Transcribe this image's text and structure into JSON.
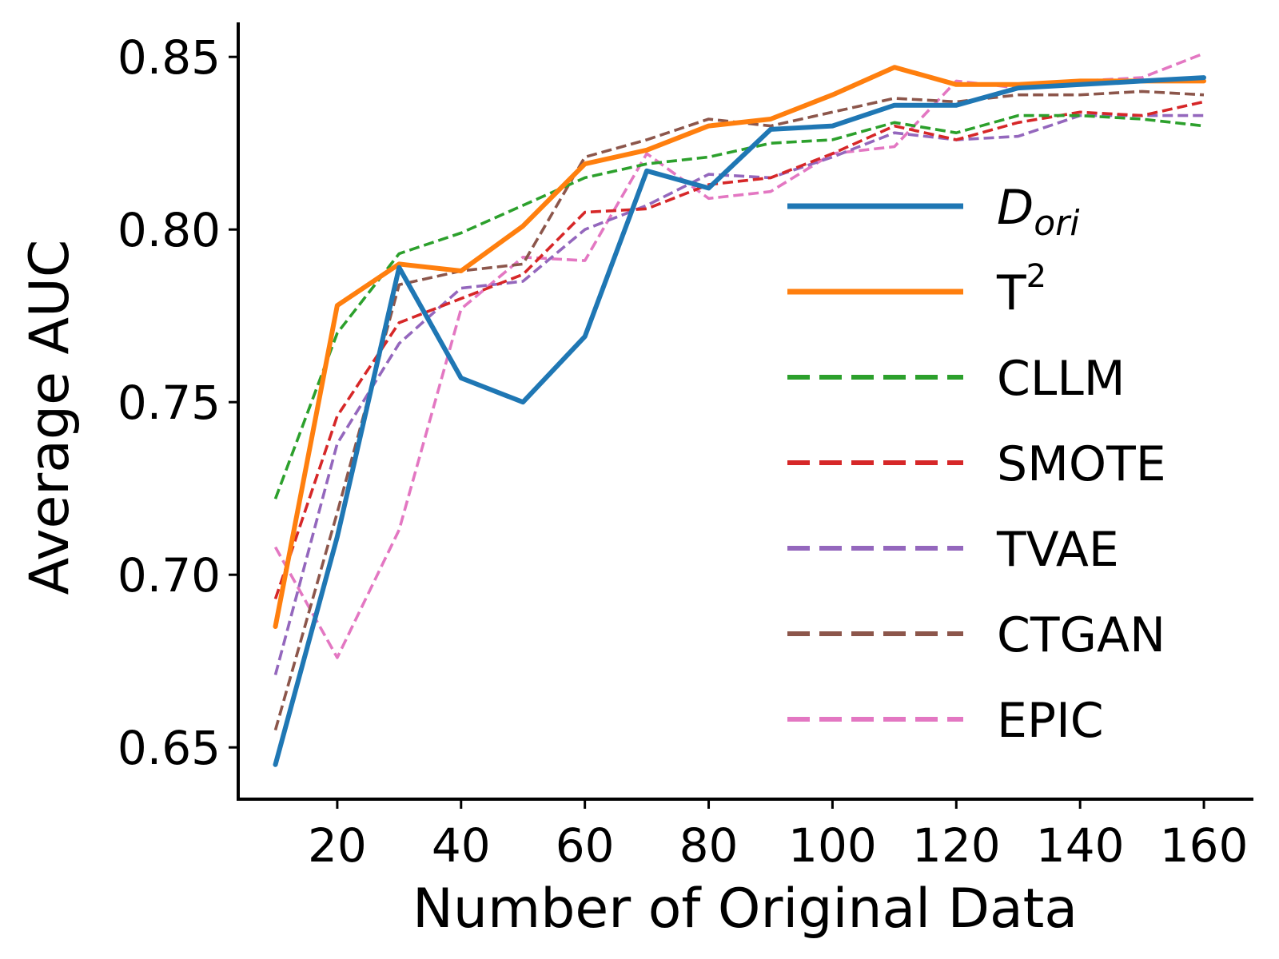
{
  "chart_data": {
    "type": "line",
    "title": "",
    "xlabel": "Number of Original Data",
    "ylabel": "Average AUC",
    "xlim": [
      4,
      168
    ],
    "ylim": [
      0.635,
      0.86
    ],
    "xticks": [
      20,
      40,
      60,
      80,
      100,
      120,
      140,
      160
    ],
    "yticks": [
      0.65,
      0.7,
      0.75,
      0.8,
      0.85
    ],
    "ytick_labels": [
      "0.65",
      "0.70",
      "0.75",
      "0.80",
      "0.85"
    ],
    "legend_position": "center-right",
    "x": [
      10,
      20,
      30,
      40,
      50,
      60,
      70,
      80,
      90,
      100,
      110,
      120,
      130,
      140,
      150,
      160
    ],
    "series": [
      {
        "name": "D",
        "subscript": "ori",
        "color": "#1f77b4",
        "style": "solid",
        "values": [
          0.645,
          0.711,
          0.789,
          0.757,
          0.75,
          0.769,
          0.817,
          0.812,
          0.829,
          0.83,
          0.836,
          0.836,
          0.841,
          0.842,
          0.843,
          0.844
        ]
      },
      {
        "name": "T",
        "superscript": "2",
        "color": "#ff7f0e",
        "style": "solid",
        "values": [
          0.685,
          0.778,
          0.79,
          0.788,
          0.801,
          0.819,
          0.823,
          0.83,
          0.832,
          0.839,
          0.847,
          0.842,
          0.842,
          0.843,
          0.843,
          0.843
        ]
      },
      {
        "name": "CLLM",
        "color": "#2ca02c",
        "style": "dashed",
        "values": [
          0.722,
          0.77,
          0.793,
          0.799,
          0.807,
          0.815,
          0.819,
          0.821,
          0.825,
          0.826,
          0.831,
          0.828,
          0.833,
          0.833,
          0.832,
          0.83
        ]
      },
      {
        "name": "SMOTE",
        "color": "#d62728",
        "style": "dashed",
        "values": [
          0.693,
          0.746,
          0.773,
          0.78,
          0.787,
          0.805,
          0.806,
          0.813,
          0.815,
          0.822,
          0.83,
          0.826,
          0.831,
          0.834,
          0.833,
          0.837
        ]
      },
      {
        "name": "TVAE",
        "color": "#9467bd",
        "style": "dashed",
        "values": [
          0.671,
          0.738,
          0.767,
          0.783,
          0.785,
          0.8,
          0.807,
          0.816,
          0.815,
          0.821,
          0.828,
          0.826,
          0.827,
          0.833,
          0.833,
          0.833
        ]
      },
      {
        "name": "CTGAN",
        "color": "#8c564b",
        "style": "dashed",
        "values": [
          0.655,
          0.718,
          0.784,
          0.788,
          0.79,
          0.821,
          0.826,
          0.832,
          0.83,
          0.834,
          0.838,
          0.837,
          0.839,
          0.839,
          0.84,
          0.839
        ]
      },
      {
        "name": "EPIC",
        "color": "#e377c2",
        "style": "dashed",
        "values": [
          0.708,
          0.676,
          0.713,
          0.777,
          0.792,
          0.791,
          0.822,
          0.809,
          0.811,
          0.822,
          0.824,
          0.843,
          0.841,
          0.843,
          0.844,
          0.851
        ]
      }
    ]
  }
}
